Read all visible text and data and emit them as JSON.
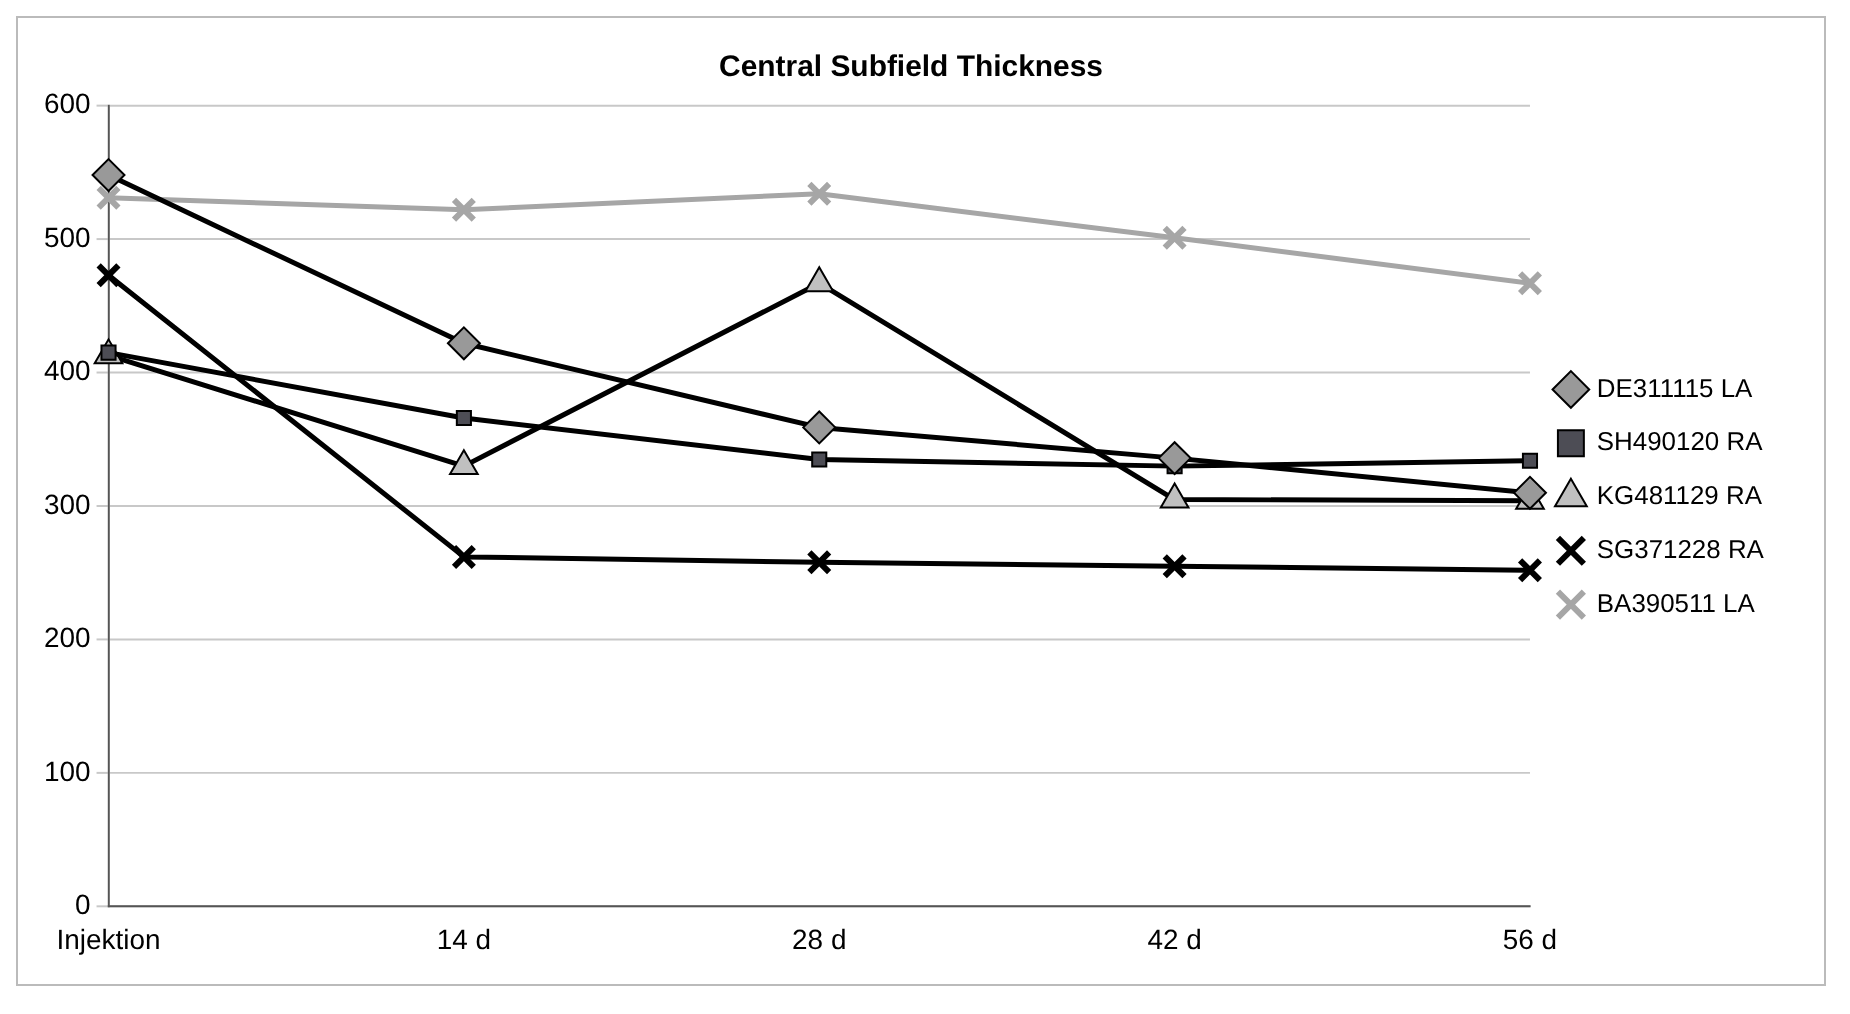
{
  "chart_data": {
    "type": "line",
    "title": "Central Subfield Thickness",
    "categories": [
      "Injektion",
      "14 d",
      "28 d",
      "42 d",
      "56 d"
    ],
    "series": [
      {
        "name": "DE311115 LA",
        "color": "#999999",
        "marker": "diamond",
        "values": [
          548,
          422,
          359,
          336,
          310
        ]
      },
      {
        "name": "SH490120 RA",
        "color": "#4d4d55",
        "marker": "square",
        "values": [
          415,
          366,
          335,
          330,
          334
        ]
      },
      {
        "name": "KG481129 RA",
        "color": "#c0c0c0",
        "marker": "triangle",
        "values": [
          413,
          330,
          467,
          305,
          304
        ]
      },
      {
        "name": "SG371228 RA",
        "color": "#000000",
        "marker": "cross",
        "values": [
          473,
          262,
          258,
          255,
          252
        ]
      },
      {
        "name": "BA390511 LA",
        "color": "#a6a6a6",
        "marker": "cross",
        "values": [
          531,
          522,
          534,
          501,
          467
        ]
      }
    ],
    "ylim": [
      0,
      600
    ],
    "yticks": [
      0,
      100,
      200,
      300,
      400,
      500,
      600
    ],
    "grid": "y",
    "legend": "right"
  }
}
